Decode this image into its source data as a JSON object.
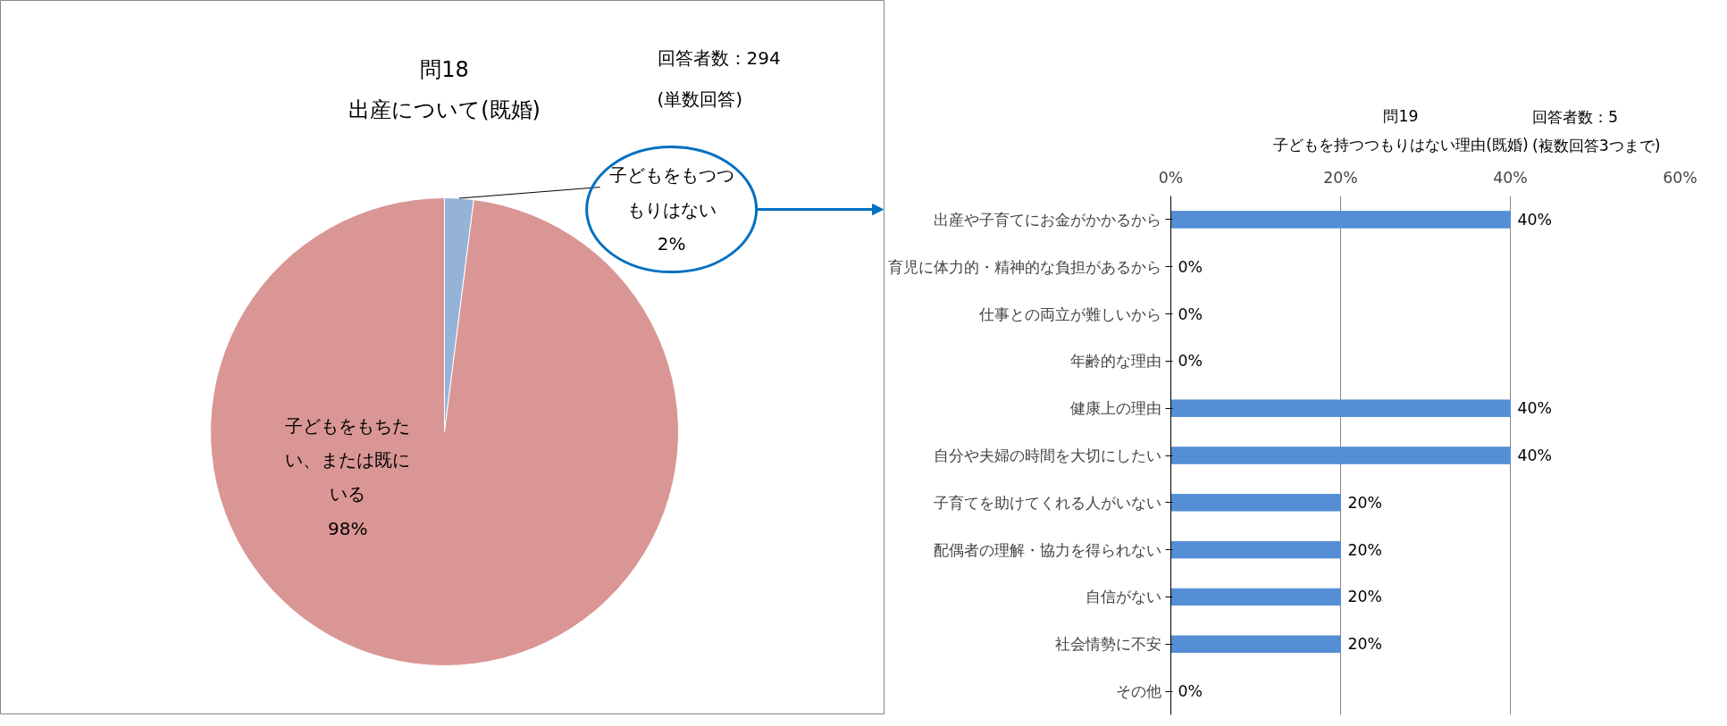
{
  "chart_data": [
    {
      "type": "pie",
      "title": "問18\n出産について(既婚)",
      "annotations": [
        "回答者数：294",
        "(単数回答)"
      ],
      "categories": [
        "子どもをもつつもりはない",
        "子どもをもちたい、または既にいる"
      ],
      "values": [
        2,
        98
      ],
      "colors": [
        "#95b3d7",
        "#d99694"
      ],
      "value_labels": [
        "2%",
        "98%"
      ]
    },
    {
      "type": "bar",
      "orientation": "horizontal",
      "title": "問19\n子どもを持つつもりはない理由(既婚)",
      "annotations": [
        "回答者数：5",
        "(複数回答3つまで)"
      ],
      "categories": [
        "出産や子育てにお金がかかるから",
        "育児に体力的・精神的な負担があるから",
        "仕事との両立が難しいから",
        "年齢的な理由",
        "健康上の理由",
        "自分や夫婦の時間を大切にしたい",
        "子育てを助けてくれる人がいない",
        "配偶者の理解・協力を得られない",
        "自信がない",
        "社会情勢に不安",
        "その他"
      ],
      "values": [
        40,
        0,
        0,
        0,
        40,
        40,
        20,
        20,
        20,
        20,
        0
      ],
      "color": "#558ed5",
      "value_labels": [
        "40%",
        "0%",
        "0%",
        "0%",
        "40%",
        "40%",
        "20%",
        "20%",
        "20%",
        "20%",
        "0%"
      ],
      "xlim": [
        0,
        60
      ],
      "xticks": [
        {
          "value": 0,
          "label": "0%"
        },
        {
          "value": 20,
          "label": "20%"
        },
        {
          "value": 40,
          "label": "40%"
        },
        {
          "value": 60,
          "label": "60%"
        }
      ],
      "grid": "x"
    }
  ]
}
